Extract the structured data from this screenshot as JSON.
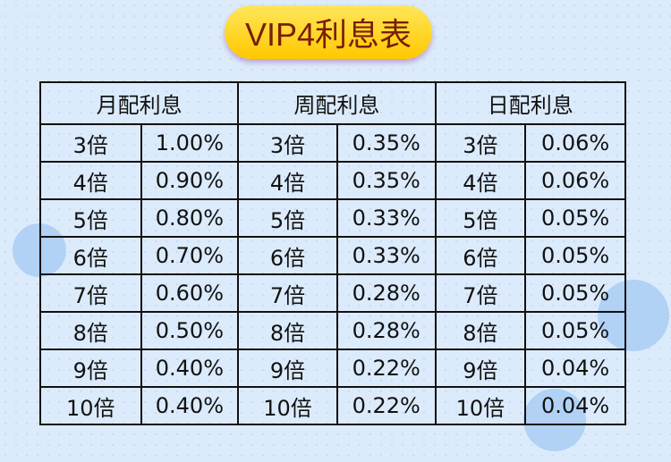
{
  "title": "VIP4利息表",
  "headers": [
    "月配利息",
    "周配利息",
    "日配利息"
  ],
  "rows": [
    [
      "3倍",
      "1.00%",
      "3倍",
      "0.35%",
      "3倍",
      "0.06%"
    ],
    [
      "4倍",
      "0.90%",
      "4倍",
      "0.35%",
      "4倍",
      "0.06%"
    ],
    [
      "5倍",
      "0.80%",
      "5倍",
      "0.33%",
      "5倍",
      "0.05%"
    ],
    [
      "6倍",
      "0.70%",
      "6倍",
      "0.33%",
      "6倍",
      "0.05%"
    ],
    [
      "7倍",
      "0.60%",
      "7倍",
      "0.28%",
      "7倍",
      "0.05%"
    ],
    [
      "8倍",
      "0.50%",
      "8倍",
      "0.28%",
      "8倍",
      "0.05%"
    ],
    [
      "9倍",
      "0.40%",
      "9倍",
      "0.22%",
      "9倍",
      "0.04%"
    ],
    [
      "10倍",
      "0.40%",
      "10倍",
      "0.22%",
      "10倍",
      "0.04%"
    ]
  ]
}
